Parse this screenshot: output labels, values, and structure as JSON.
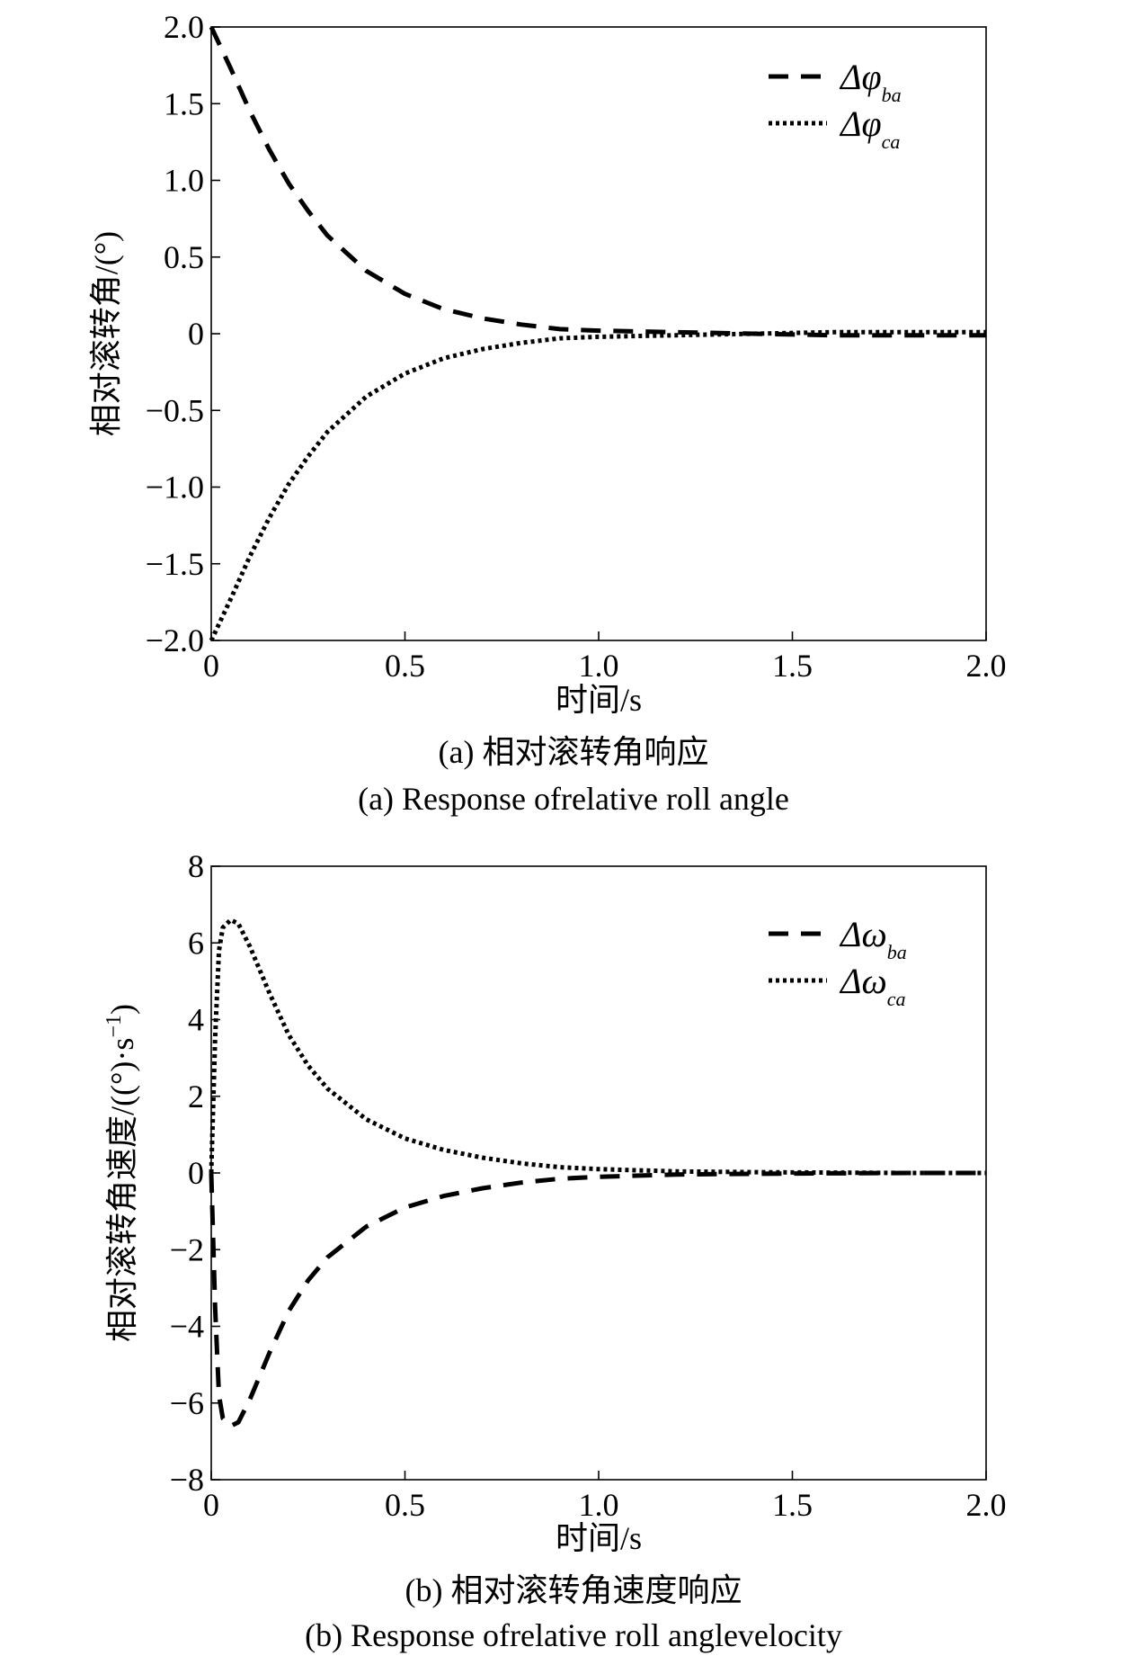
{
  "chart_data": [
    {
      "type": "line",
      "xlabel": "时间/s",
      "ylabel": "相对滚转角/(°)",
      "xlim": [
        0,
        2.0
      ],
      "ylim": [
        -2.0,
        2.0
      ],
      "xticks": [
        "0",
        "0.5",
        "1.0",
        "1.5",
        "2.0"
      ],
      "yticks": [
        "2.0",
        "1.5",
        "1.0",
        "0.5",
        "0",
        "−0.5",
        "−1.0",
        "−1.5",
        "−2.0"
      ],
      "legend_position": "top-right",
      "grid": false,
      "caption_cn": "(a) 相对滚转角响应",
      "caption_en": "(a) Response ofrelative roll angle",
      "series": [
        {
          "legend_main": "Δφ",
          "legend_sub": "ba",
          "style": "dashed",
          "x": [
            0,
            0.05,
            0.1,
            0.15,
            0.2,
            0.25,
            0.3,
            0.4,
            0.5,
            0.6,
            0.7,
            0.8,
            0.9,
            1.0,
            1.2,
            1.4,
            1.6,
            1.8,
            2.0
          ],
          "y": [
            2.0,
            1.73,
            1.45,
            1.2,
            0.98,
            0.8,
            0.64,
            0.41,
            0.26,
            0.16,
            0.1,
            0.06,
            0.03,
            0.02,
            0.01,
            0,
            -0.01,
            -0.01,
            -0.01
          ]
        },
        {
          "legend_main": "Δφ",
          "legend_sub": "ca",
          "style": "dotted",
          "x": [
            0,
            0.05,
            0.1,
            0.15,
            0.2,
            0.25,
            0.3,
            0.4,
            0.5,
            0.6,
            0.7,
            0.8,
            0.9,
            1.0,
            1.2,
            1.4,
            1.6,
            1.8,
            2.0
          ],
          "y": [
            -2.0,
            -1.73,
            -1.45,
            -1.2,
            -0.98,
            -0.8,
            -0.64,
            -0.41,
            -0.26,
            -0.16,
            -0.1,
            -0.06,
            -0.03,
            -0.02,
            -0.01,
            0,
            0.01,
            0.01,
            0.01
          ]
        }
      ]
    },
    {
      "type": "line",
      "xlabel": "时间/s",
      "ylabel": "相对滚转角速度/((°)·s",
      "ylabel_sup": "−1",
      "ylabel_tail": ")",
      "xlim": [
        0,
        2.0
      ],
      "ylim": [
        -8,
        8
      ],
      "xticks": [
        "0",
        "0.5",
        "1.0",
        "1.5",
        "2.0"
      ],
      "yticks": [
        "8",
        "6",
        "4",
        "2",
        "0",
        "−2",
        "−4",
        "−6",
        "−8"
      ],
      "legend_position": "top-right",
      "grid": false,
      "caption_cn": "(b) 相对滚转角速度响应",
      "caption_en": "(b) Response ofrelative roll anglevelocity",
      "series": [
        {
          "legend_main": "Δω",
          "legend_sub": "ba",
          "style": "dashed",
          "x": [
            0,
            0.01,
            0.02,
            0.03,
            0.05,
            0.07,
            0.1,
            0.15,
            0.2,
            0.25,
            0.3,
            0.4,
            0.5,
            0.6,
            0.7,
            0.8,
            0.9,
            1.0,
            1.2,
            1.4,
            1.6,
            1.8,
            2.0
          ],
          "y": [
            0,
            -3.5,
            -5.8,
            -6.4,
            -6.6,
            -6.5,
            -5.9,
            -4.7,
            -3.6,
            -2.8,
            -2.2,
            -1.4,
            -0.9,
            -0.6,
            -0.4,
            -0.25,
            -0.15,
            -0.1,
            -0.04,
            -0.02,
            -0.01,
            0,
            0
          ]
        },
        {
          "legend_main": "Δω",
          "legend_sub": "ca",
          "style": "dotted",
          "x": [
            0,
            0.01,
            0.02,
            0.03,
            0.05,
            0.07,
            0.1,
            0.15,
            0.2,
            0.25,
            0.3,
            0.4,
            0.5,
            0.6,
            0.7,
            0.8,
            0.9,
            1.0,
            1.2,
            1.4,
            1.6,
            1.8,
            2.0
          ],
          "y": [
            0,
            3.5,
            5.8,
            6.4,
            6.6,
            6.5,
            5.9,
            4.7,
            3.6,
            2.8,
            2.2,
            1.4,
            0.9,
            0.6,
            0.4,
            0.25,
            0.15,
            0.1,
            0.04,
            0.02,
            0.01,
            0,
            0
          ]
        }
      ]
    }
  ]
}
